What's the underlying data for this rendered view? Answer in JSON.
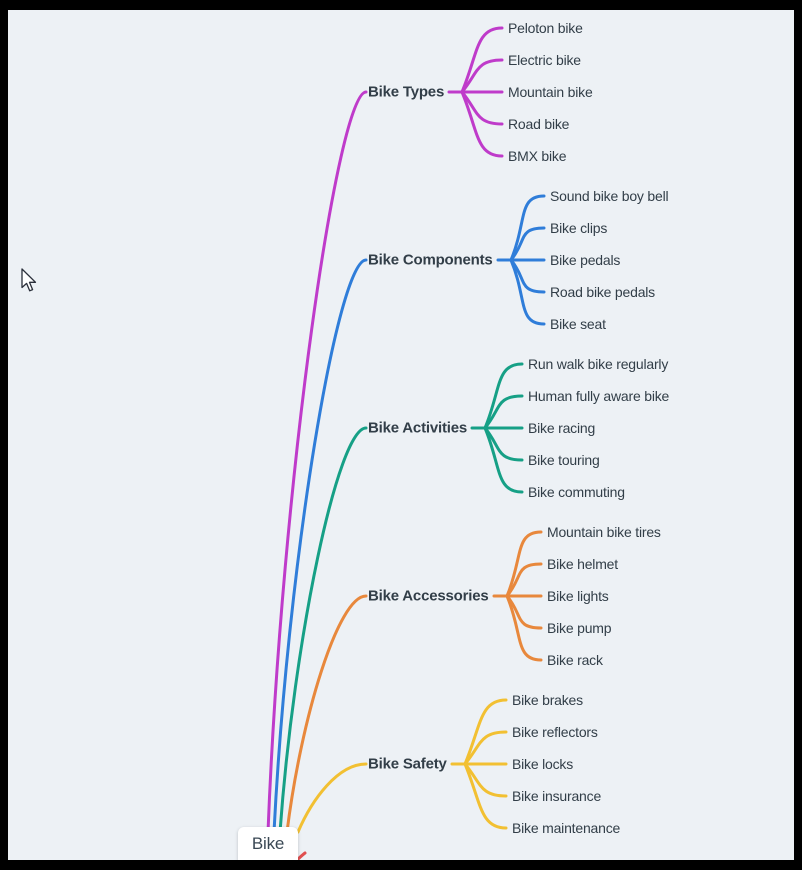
{
  "root": {
    "label": "Bike"
  },
  "branches": [
    {
      "label": "Bike Types",
      "color": "#bf3bca",
      "leaves": [
        "Peloton bike",
        "Electric bike",
        "Mountain bike",
        "Road bike",
        "BMX bike"
      ]
    },
    {
      "label": "Bike Components",
      "color": "#2f7dd9",
      "leaves": [
        "Sound bike boy bell",
        "Bike clips",
        "Bike pedals",
        "Road bike pedals",
        "Bike seat"
      ]
    },
    {
      "label": "Bike Activities",
      "color": "#16a086",
      "leaves": [
        "Run walk bike regularly",
        "Human fully aware bike",
        "Bike racing",
        "Bike touring",
        "Bike commuting"
      ]
    },
    {
      "label": "Bike Accessories",
      "color": "#e8883c",
      "leaves": [
        "Mountain bike tires",
        "Bike helmet",
        "Bike lights",
        "Bike pump",
        "Bike rack"
      ]
    },
    {
      "label": "Bike Safety",
      "color": "#f2c032",
      "leaves": [
        "Bike brakes",
        "Bike reflectors",
        "Bike locks",
        "Bike insurance",
        "Bike maintenance"
      ]
    }
  ],
  "hidden_branch": {
    "color": "#e04f4f"
  },
  "canvas": {
    "background": "#edf1f5",
    "frame_color": "#000000",
    "text_color": "#323e48"
  }
}
